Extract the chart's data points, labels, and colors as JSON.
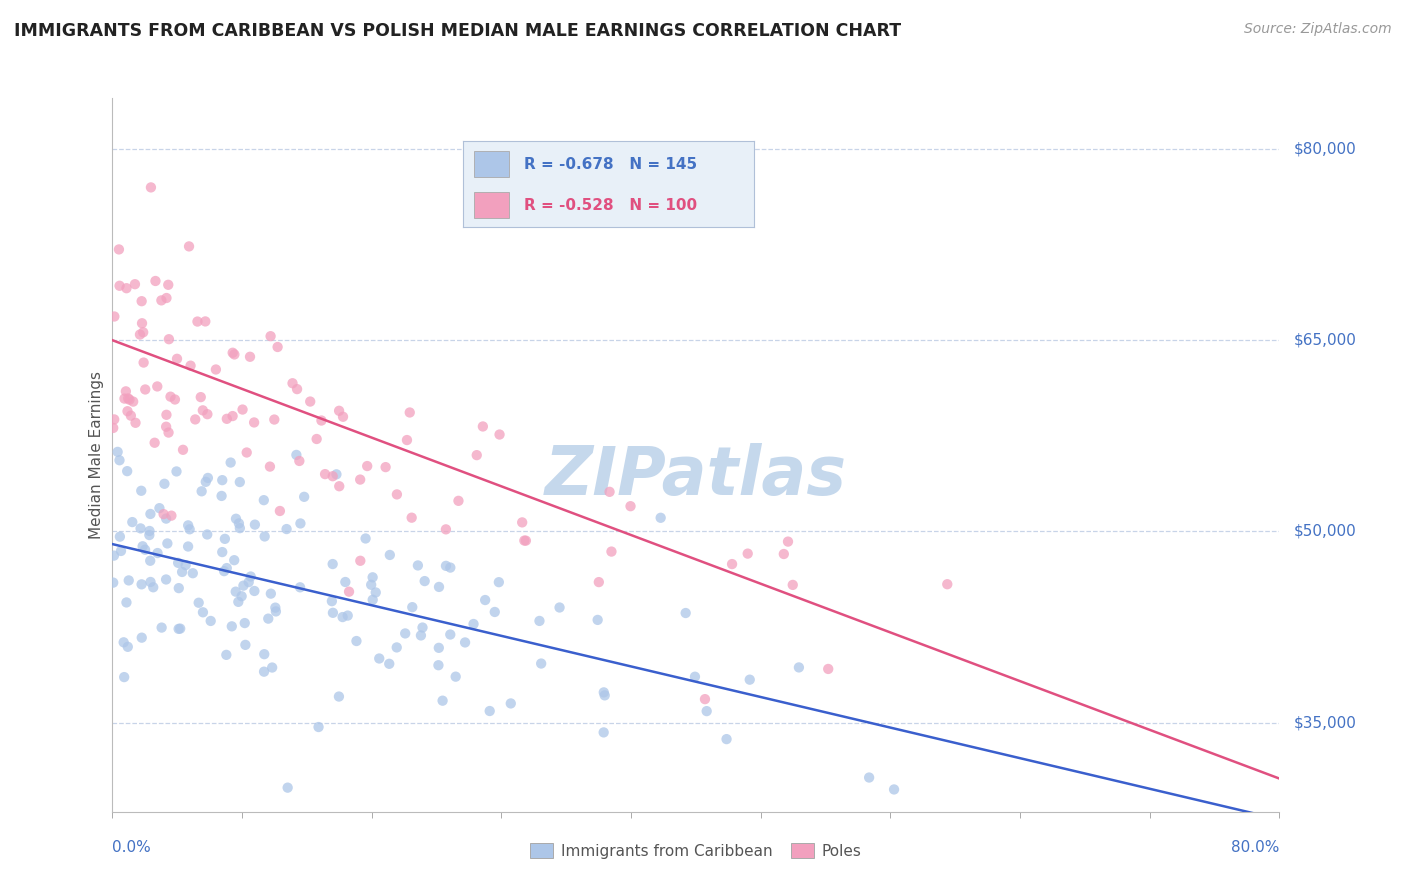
{
  "title": "IMMIGRANTS FROM CARIBBEAN VS POLISH MEDIAN MALE EARNINGS CORRELATION CHART",
  "source": "Source: ZipAtlas.com",
  "ylabel": "Median Male Earnings",
  "y_ticks": [
    35000,
    50000,
    65000,
    80000
  ],
  "y_tick_labels": [
    "$35,000",
    "$50,000",
    "$65,000",
    "$80,000"
  ],
  "x_min": 0.0,
  "x_max": 80.0,
  "y_min": 28000,
  "y_max": 84000,
  "caribbean_R": -0.678,
  "caribbean_N": 145,
  "poles_R": -0.528,
  "poles_N": 100,
  "caribbean_color": "#adc6e8",
  "poles_color": "#f2a0be",
  "caribbean_line_color": "#3a5fcd",
  "poles_line_color": "#e05080",
  "axis_label_color": "#4472c4",
  "watermark_color": "#c5d8ec",
  "background_color": "#ffffff",
  "grid_color": "#c8d4e8",
  "legend_box_color": "#e8f0f8",
  "legend_border_color": "#b0c0d8",
  "caribbean_line_intercept": 49000,
  "caribbean_line_slope": -270,
  "poles_line_intercept": 65000,
  "poles_line_slope": -430
}
